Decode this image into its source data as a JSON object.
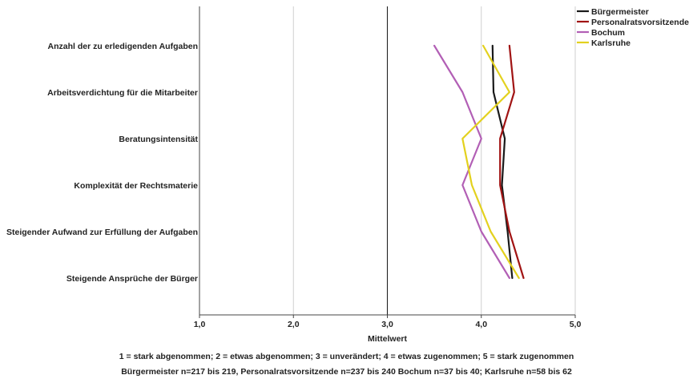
{
  "chart_data": {
    "type": "line",
    "orientation": "horizontal-categories",
    "categories": [
      "Anzahl der zu erledigenden Aufgaben",
      "Arbeitsverdichtung für die Mitarbeiter",
      "Beratungsintensität",
      "Komplexität der Rechtsmaterie",
      "Steigender Aufwand zur Erfüllung der Aufgaben",
      "Steigende Ansprüche der Bürger"
    ],
    "series": [
      {
        "name": "Bürgermeister",
        "color": "#1a1a1a",
        "values": [
          4.12,
          4.13,
          4.25,
          4.22,
          4.28,
          4.33
        ]
      },
      {
        "name": "Personalratsvorsitzende",
        "color": "#a11414",
        "values": [
          4.3,
          4.35,
          4.2,
          4.2,
          4.3,
          4.45
        ]
      },
      {
        "name": "Bochum",
        "color": "#b25fb5",
        "values": [
          3.5,
          3.8,
          4.0,
          3.8,
          4.0,
          4.3
        ]
      },
      {
        "name": "Karlsruhe",
        "color": "#e3d11e",
        "values": [
          4.02,
          4.3,
          3.8,
          3.9,
          4.1,
          4.4
        ]
      }
    ],
    "xlim": [
      1,
      5
    ],
    "xticks": [
      1,
      2,
      3,
      4,
      5
    ],
    "xtick_labels": [
      "1,0",
      "2,0",
      "3,0",
      "4,0",
      "5,0"
    ],
    "xlabel": "Mittelwert",
    "reference_line": 3,
    "grid": "vertical",
    "legend_position": "top-right"
  },
  "footnotes": {
    "scale": "1 = stark abgenommen; 2 = etwas abgenommen; 3 = unverändert; 4 = etwas zugenommen; 5 = stark zugenommen",
    "sample": "Bürgermeister n=217 bis 219, Personalratsvorsitzende n=237 bis 240 Bochum n=37 bis 40; Karlsruhe n=58 bis 62"
  }
}
